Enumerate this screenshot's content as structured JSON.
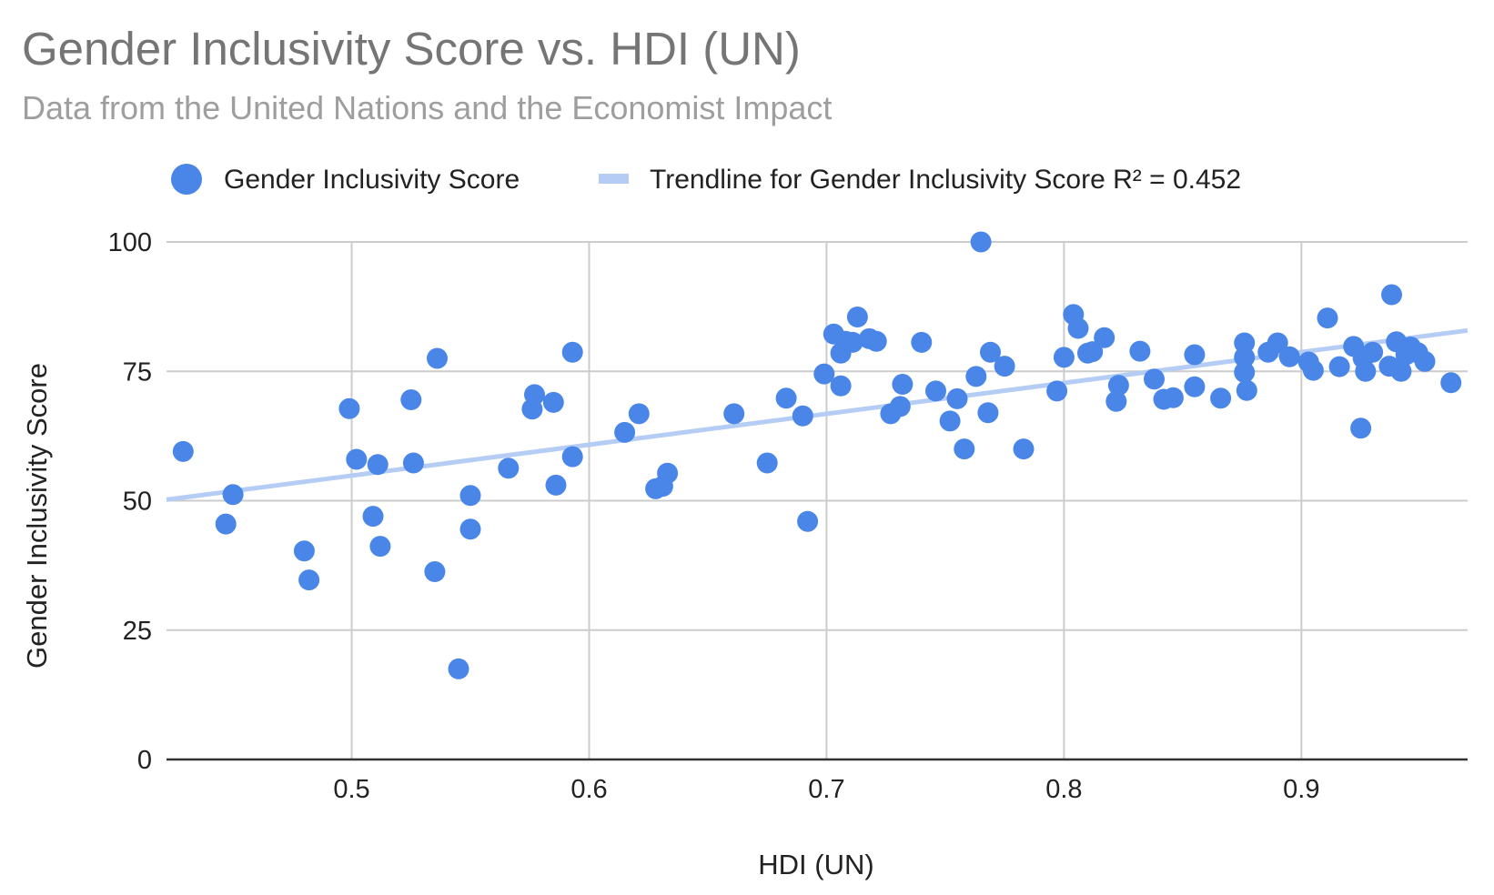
{
  "chart_data": {
    "type": "scatter",
    "title": "Gender Inclusivity Score vs. HDI (UN)",
    "subtitle": "Data from the United Nations and the Economist Impact",
    "xlabel": "HDI (UN)",
    "ylabel": "Gender Inclusivity Score",
    "xlim": [
      0.422,
      0.97
    ],
    "ylim": [
      0,
      100
    ],
    "x_ticks": [
      0.5,
      0.6,
      0.7,
      0.8,
      0.9
    ],
    "x_tick_labels": [
      "0.5",
      "0.6",
      "0.7",
      "0.8",
      "0.9"
    ],
    "y_ticks": [
      0,
      25,
      50,
      75,
      100
    ],
    "y_tick_labels": [
      "0",
      "25",
      "50",
      "75",
      "100"
    ],
    "grid": true,
    "legend_position": "top",
    "series": [
      {
        "name": "Gender Inclusivity Score",
        "color": "#4a86e8",
        "marker": "circle",
        "points": [
          [
            0.429,
            59.5
          ],
          [
            0.447,
            45.5
          ],
          [
            0.45,
            51.2
          ],
          [
            0.48,
            40.3
          ],
          [
            0.482,
            34.7
          ],
          [
            0.499,
            67.8
          ],
          [
            0.502,
            58.0
          ],
          [
            0.509,
            47.0
          ],
          [
            0.511,
            57.0
          ],
          [
            0.512,
            41.2
          ],
          [
            0.525,
            69.5
          ],
          [
            0.526,
            57.3
          ],
          [
            0.535,
            36.3
          ],
          [
            0.536,
            77.5
          ],
          [
            0.545,
            17.5
          ],
          [
            0.55,
            51.0
          ],
          [
            0.55,
            44.5
          ],
          [
            0.566,
            56.3
          ],
          [
            0.576,
            67.7
          ],
          [
            0.577,
            70.5
          ],
          [
            0.585,
            69.0
          ],
          [
            0.586,
            53.0
          ],
          [
            0.593,
            78.7
          ],
          [
            0.593,
            58.5
          ],
          [
            0.615,
            63.2
          ],
          [
            0.621,
            66.8
          ],
          [
            0.628,
            52.3
          ],
          [
            0.631,
            52.8
          ],
          [
            0.633,
            55.3
          ],
          [
            0.661,
            66.8
          ],
          [
            0.675,
            57.3
          ],
          [
            0.683,
            69.8
          ],
          [
            0.69,
            66.4
          ],
          [
            0.692,
            46.0
          ],
          [
            0.699,
            74.5
          ],
          [
            0.703,
            82.2
          ],
          [
            0.706,
            78.5
          ],
          [
            0.706,
            72.2
          ],
          [
            0.708,
            80.8
          ],
          [
            0.711,
            80.6
          ],
          [
            0.713,
            85.5
          ],
          [
            0.718,
            81.3
          ],
          [
            0.721,
            80.8
          ],
          [
            0.727,
            66.8
          ],
          [
            0.731,
            68.2
          ],
          [
            0.732,
            72.5
          ],
          [
            0.74,
            80.6
          ],
          [
            0.746,
            71.2
          ],
          [
            0.752,
            65.4
          ],
          [
            0.755,
            69.7
          ],
          [
            0.758,
            60.0
          ],
          [
            0.763,
            74.0
          ],
          [
            0.765,
            100.0
          ],
          [
            0.768,
            67.0
          ],
          [
            0.769,
            78.7
          ],
          [
            0.775,
            76.0
          ],
          [
            0.783,
            60.0
          ],
          [
            0.797,
            71.2
          ],
          [
            0.8,
            77.7
          ],
          [
            0.804,
            86.0
          ],
          [
            0.806,
            83.3
          ],
          [
            0.81,
            78.5
          ],
          [
            0.812,
            78.8
          ],
          [
            0.817,
            81.5
          ],
          [
            0.822,
            69.2
          ],
          [
            0.823,
            72.3
          ],
          [
            0.832,
            78.9
          ],
          [
            0.838,
            73.5
          ],
          [
            0.842,
            69.6
          ],
          [
            0.846,
            69.9
          ],
          [
            0.855,
            72.0
          ],
          [
            0.855,
            78.2
          ],
          [
            0.866,
            69.8
          ],
          [
            0.876,
            80.5
          ],
          [
            0.876,
            77.7
          ],
          [
            0.876,
            74.8
          ],
          [
            0.877,
            71.3
          ],
          [
            0.886,
            78.7
          ],
          [
            0.89,
            80.5
          ],
          [
            0.895,
            77.8
          ],
          [
            0.903,
            76.8
          ],
          [
            0.905,
            75.2
          ],
          [
            0.911,
            85.3
          ],
          [
            0.916,
            75.9
          ],
          [
            0.922,
            79.8
          ],
          [
            0.925,
            64.0
          ],
          [
            0.926,
            77.5
          ],
          [
            0.927,
            75.0
          ],
          [
            0.93,
            78.7
          ],
          [
            0.937,
            76.0
          ],
          [
            0.938,
            89.8
          ],
          [
            0.94,
            80.7
          ],
          [
            0.942,
            75.0
          ],
          [
            0.944,
            78.2
          ],
          [
            0.946,
            79.7
          ],
          [
            0.949,
            78.6
          ],
          [
            0.952,
            76.9
          ],
          [
            0.963,
            72.8
          ]
        ]
      },
      {
        "name": "Trendline for Gender Inclusivity Score R² = 0.452",
        "type": "trendline",
        "color": "#b5cdf5",
        "x": [
          0.422,
          0.97
        ],
        "y": [
          50.2,
          82.9
        ]
      }
    ]
  }
}
